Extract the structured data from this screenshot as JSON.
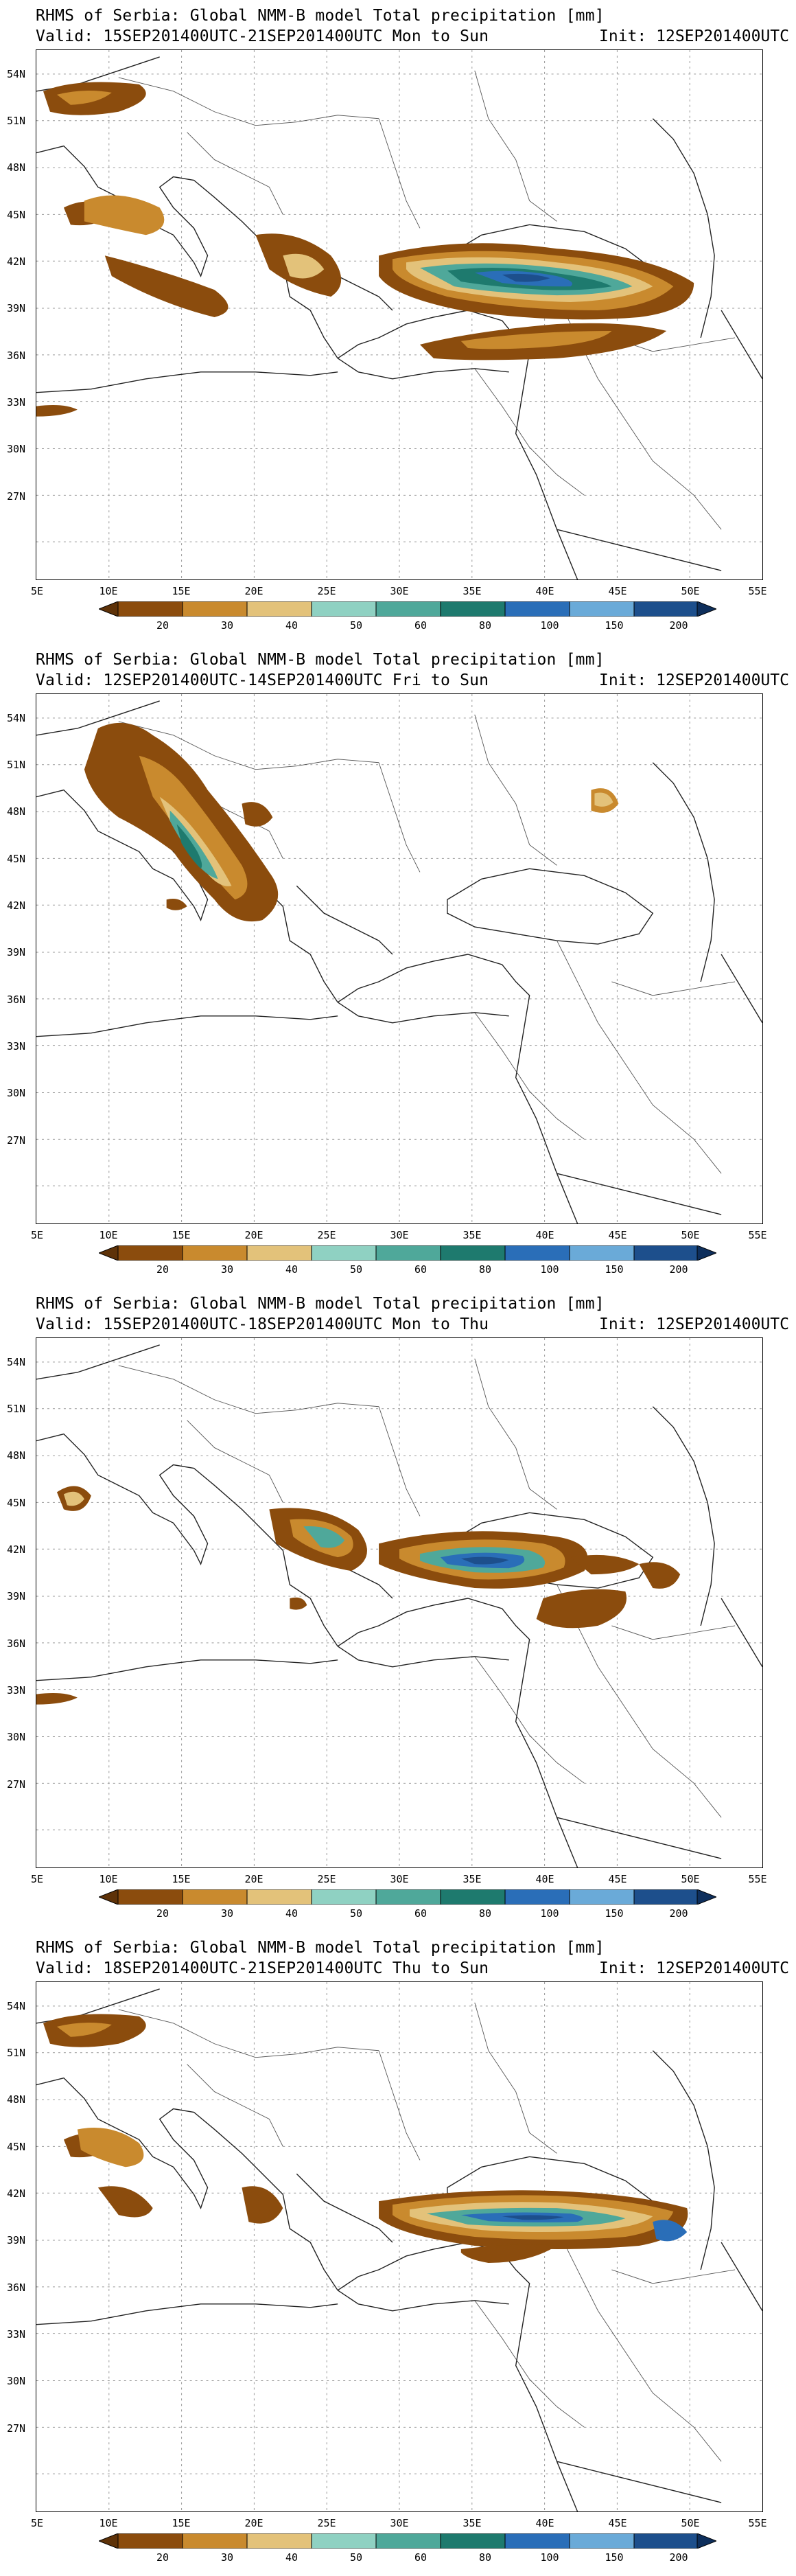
{
  "colorbar": {
    "labels": [
      "20",
      "30",
      "40",
      "50",
      "60",
      "80",
      "100",
      "150",
      "200"
    ],
    "colors": [
      "#8b4c0d",
      "#c98a2e",
      "#e3c27a",
      "#8fd1c2",
      "#4fa89a",
      "#1e7a6e",
      "#2a6eb8",
      "#6aaad8",
      "#1d4f8c"
    ]
  },
  "axes": {
    "x_labels": [
      "5E",
      "10E",
      "15E",
      "20E",
      "25E",
      "30E",
      "35E",
      "40E",
      "45E",
      "50E",
      "55E"
    ],
    "y_labels": [
      "54N",
      "51N",
      "48N",
      "45N",
      "42N",
      "39N",
      "36N",
      "33N",
      "30N",
      "27N"
    ]
  },
  "panels": [
    {
      "title": "RHMS of Serbia: Global NMM-B model Total precipitation [mm]",
      "valid": "Valid: 15SEP201400UTC-21SEP201400UTC Mon to Sun",
      "init": "Init: 12SEP201400UTC"
    },
    {
      "title": "RHMS of Serbia: Global NMM-B model Total precipitation [mm]",
      "valid": "Valid: 12SEP201400UTC-14SEP201400UTC Fri to Sun",
      "init": "Init: 12SEP201400UTC"
    },
    {
      "title": "RHMS of Serbia: Global NMM-B model Total precipitation [mm]",
      "valid": "Valid: 15SEP201400UTC-18SEP201400UTC Mon to Thu",
      "init": "Init: 12SEP201400UTC"
    },
    {
      "title": "RHMS of Serbia: Global NMM-B model Total precipitation [mm]",
      "valid": "Valid: 18SEP201400UTC-21SEP201400UTC Thu to Sun",
      "init": "Init: 12SEP201400UTC"
    }
  ]
}
